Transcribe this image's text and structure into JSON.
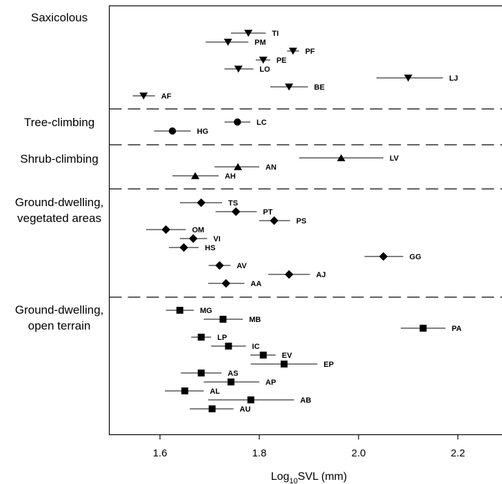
{
  "chart_data": {
    "type": "scatter",
    "subtype": "dot-plot-with-error-bars",
    "xlabel": {
      "base": "Log",
      "subscript": "10",
      "rest": "SVL (mm)"
    },
    "xlim": [
      1.5,
      2.3
    ],
    "xticks": [
      1.6,
      1.8,
      2.0,
      2.2
    ],
    "xtick_labels": [
      "1.6",
      "1.8",
      "2.0",
      "2.2"
    ],
    "grid": false,
    "groups": [
      {
        "name": "Saxicolous",
        "label_lines": [
          "Saxicolous"
        ],
        "marker": "triangle-down",
        "points": [
          {
            "label": "TI",
            "x": 1.778,
            "xerr": [
              1.743,
              1.813
            ]
          },
          {
            "label": "PM",
            "x": 1.737,
            "xerr": [
              1.692,
              1.778
            ]
          },
          {
            "label": "PF",
            "x": 1.868,
            "xerr": [
              1.856,
              1.88
            ]
          },
          {
            "label": "PE",
            "x": 1.808,
            "xerr": [
              1.793,
              1.822
            ]
          },
          {
            "label": "LO",
            "x": 1.758,
            "xerr": [
              1.73,
              1.788
            ]
          },
          {
            "label": "LJ",
            "x": 2.1,
            "xerr": [
              2.036,
              2.17
            ]
          },
          {
            "label": "BE",
            "x": 1.86,
            "xerr": [
              1.822,
              1.898
            ]
          },
          {
            "label": "AF",
            "x": 1.567,
            "xerr": [
              1.545,
              1.59
            ]
          }
        ]
      },
      {
        "name": "Tree-climbing",
        "label_lines": [
          "Tree-climbing"
        ],
        "marker": "circle",
        "points": [
          {
            "label": "LC",
            "x": 1.756,
            "xerr": [
              1.73,
              1.782
            ]
          },
          {
            "label": "HG",
            "x": 1.625,
            "xerr": [
              1.588,
              1.662
            ]
          }
        ]
      },
      {
        "name": "Shrub-climbing",
        "label_lines": [
          "Shrub-climbing"
        ],
        "marker": "triangle-up",
        "points": [
          {
            "label": "LV",
            "x": 1.965,
            "xerr": [
              1.88,
              2.05
            ]
          },
          {
            "label": "AN",
            "x": 1.757,
            "xerr": [
              1.71,
              1.8
            ]
          },
          {
            "label": "AH",
            "x": 1.671,
            "xerr": [
              1.625,
              1.718
            ]
          }
        ]
      },
      {
        "name": "Ground-dwelling, vegetated areas",
        "label_lines": [
          "Ground-dwelling,",
          "vegetated areas"
        ],
        "marker": "diamond",
        "points": [
          {
            "label": "TS",
            "x": 1.683,
            "xerr": [
              1.64,
              1.725
            ]
          },
          {
            "label": "PT",
            "x": 1.753,
            "xerr": [
              1.712,
              1.795
            ]
          },
          {
            "label": "PS",
            "x": 1.83,
            "xerr": [
              1.8,
              1.862
            ]
          },
          {
            "label": "OM",
            "x": 1.612,
            "xerr": [
              1.572,
              1.652
            ]
          },
          {
            "label": "VI",
            "x": 1.667,
            "xerr": [
              1.64,
              1.695
            ]
          },
          {
            "label": "HS",
            "x": 1.648,
            "xerr": [
              1.618,
              1.678
            ]
          },
          {
            "label": "GG",
            "x": 2.05,
            "xerr": [
              2.012,
              2.09
            ]
          },
          {
            "label": "AV",
            "x": 1.72,
            "xerr": [
              1.698,
              1.742
            ]
          },
          {
            "label": "AJ",
            "x": 1.86,
            "xerr": [
              1.818,
              1.902
            ]
          },
          {
            "label": "AA",
            "x": 1.733,
            "xerr": [
              1.697,
              1.77
            ]
          }
        ]
      },
      {
        "name": "Ground-dwelling, open terrain",
        "label_lines": [
          "Ground-dwelling,",
          "open terrain"
        ],
        "marker": "square",
        "points": [
          {
            "label": "MG",
            "x": 1.64,
            "xerr": [
              1.612,
              1.668
            ]
          },
          {
            "label": "MB",
            "x": 1.727,
            "xerr": [
              1.688,
              1.767
            ]
          },
          {
            "label": "PA",
            "x": 2.13,
            "xerr": [
              2.085,
              2.175
            ]
          },
          {
            "label": "LP",
            "x": 1.683,
            "xerr": [
              1.663,
              1.703
            ]
          },
          {
            "label": "IC",
            "x": 1.738,
            "xerr": [
              1.703,
              1.773
            ]
          },
          {
            "label": "EV",
            "x": 1.808,
            "xerr": [
              1.782,
              1.833
            ]
          },
          {
            "label": "EP",
            "x": 1.85,
            "xerr": [
              1.783,
              1.917
            ]
          },
          {
            "label": "AS",
            "x": 1.683,
            "xerr": [
              1.642,
              1.724
            ]
          },
          {
            "label": "AP",
            "x": 1.743,
            "xerr": [
              1.688,
              1.8
            ]
          },
          {
            "label": "AL",
            "x": 1.65,
            "xerr": [
              1.61,
              1.688
            ]
          },
          {
            "label": "AB",
            "x": 1.783,
            "xerr": [
              1.697,
              1.87
            ]
          },
          {
            "label": "AU",
            "x": 1.705,
            "xerr": [
              1.66,
              1.748
            ]
          }
        ]
      }
    ]
  }
}
